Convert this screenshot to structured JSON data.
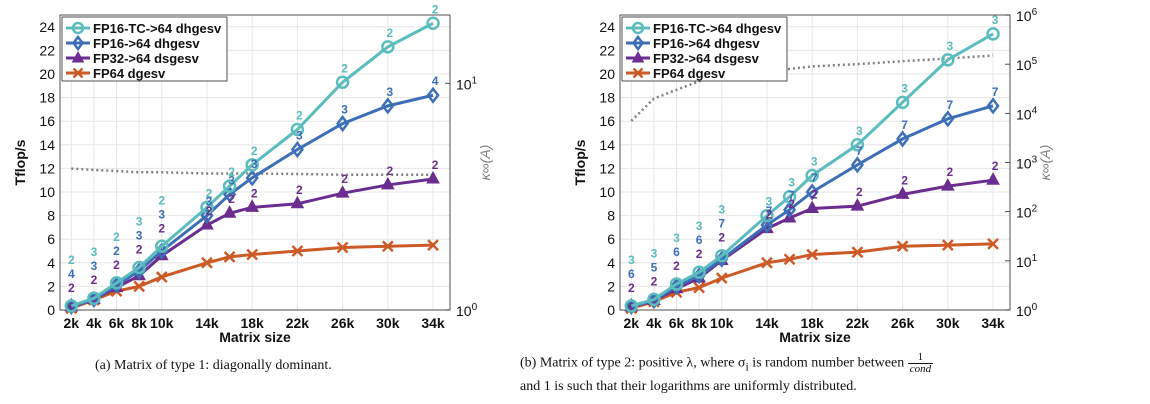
{
  "colors": {
    "fp16tc": "#5bbcbd",
    "fp16": "#3d6fb7",
    "fp32": "#6b2d8f",
    "fp64": "#cc5a26",
    "kappa": "#808080",
    "grid": "#e6e6e6"
  },
  "chart_data": [
    {
      "type": "line",
      "xlabel": "Matrix size",
      "ylabel": "Tflop/s",
      "y2label": "κ∞(A)",
      "x_ticks": [
        "2k",
        "4k",
        "6k",
        "8k",
        "10k",
        "14k",
        "18k",
        "22k",
        "26k",
        "30k",
        "34k"
      ],
      "ylim": [
        0,
        25
      ],
      "y_ticks": [
        0,
        2,
        4,
        6,
        8,
        10,
        12,
        14,
        16,
        18,
        20,
        22,
        24
      ],
      "y2_scale": "log",
      "y2lim": [
        1,
        20
      ],
      "y2_ticks": [
        "10^0",
        "10^1"
      ],
      "grid": true,
      "legend_position": "top-left",
      "x": [
        2,
        4,
        6,
        8,
        10,
        14,
        16,
        18,
        22,
        26,
        30,
        34
      ],
      "series": [
        {
          "name": "FP16-TC->64 dhgesv",
          "color_key": "fp16tc",
          "marker": "circle",
          "values": [
            0.35,
            1.0,
            2.3,
            3.6,
            5.4,
            8.7,
            10.5,
            12.3,
            15.3,
            19.3,
            22.3,
            24.3
          ],
          "labels": [
            "2",
            "3",
            "2",
            "3",
            "2",
            "2",
            "2",
            "2",
            "2",
            "2",
            "2",
            "2"
          ]
        },
        {
          "name": "FP16->64 dhgesv",
          "color_key": "fp16",
          "marker": "diamond",
          "values": [
            0.3,
            0.9,
            2.1,
            3.3,
            5.0,
            8.0,
            9.8,
            11.2,
            13.6,
            15.8,
            17.3,
            18.2
          ],
          "labels": [
            "4",
            "3",
            "2",
            "3",
            "3",
            "3",
            "3",
            "3",
            "3",
            "3",
            "3",
            "4"
          ]
        },
        {
          "name": "FP32->64 dsgesv",
          "color_key": "fp32",
          "marker": "triangle",
          "values": [
            0.25,
            0.9,
            1.9,
            2.9,
            4.6,
            7.2,
            8.2,
            8.7,
            9.0,
            9.9,
            10.6,
            11.1
          ],
          "labels": [
            "2",
            "2",
            "2",
            "2",
            "2",
            "2",
            "2",
            "2",
            "2",
            "2",
            "2",
            "2"
          ]
        },
        {
          "name": "FP64 dgesv",
          "color_key": "fp64",
          "marker": "x",
          "values": [
            0.15,
            0.85,
            1.6,
            2.0,
            2.8,
            4.0,
            4.5,
            4.7,
            5.0,
            5.3,
            5.4,
            5.5
          ],
          "labels": []
        }
      ],
      "kappa": {
        "x": [
          2,
          4,
          6,
          8,
          10,
          14,
          16,
          18,
          22,
          26,
          30,
          34
        ],
        "values": [
          4.2,
          4.15,
          4.1,
          4.05,
          4.05,
          4.0,
          4.0,
          4.0,
          3.98,
          3.95,
          3.95,
          3.95
        ]
      }
    },
    {
      "type": "line",
      "xlabel": "Matrix size",
      "ylabel": "Tflop/s",
      "y2label": "κ∞(A)",
      "x_ticks": [
        "2k",
        "4k",
        "6k",
        "8k",
        "10k",
        "14k",
        "18k",
        "22k",
        "26k",
        "30k",
        "34k"
      ],
      "ylim": [
        0,
        25
      ],
      "y_ticks": [
        0,
        2,
        4,
        6,
        8,
        10,
        12,
        14,
        16,
        18,
        20,
        22,
        24
      ],
      "y2_scale": "log",
      "y2lim": [
        1,
        1000000
      ],
      "y2_ticks": [
        "10^0",
        "10^1",
        "10^2",
        "10^3",
        "10^4",
        "10^5",
        "10^6"
      ],
      "grid": true,
      "legend_position": "top-left",
      "x": [
        2,
        4,
        6,
        8,
        10,
        14,
        16,
        18,
        22,
        26,
        30,
        34
      ],
      "series": [
        {
          "name": "FP16-TC->64 dhgesv",
          "color_key": "fp16tc",
          "marker": "circle",
          "values": [
            0.35,
            0.9,
            2.2,
            3.2,
            4.6,
            8.0,
            9.6,
            11.4,
            14.0,
            17.6,
            21.2,
            23.4
          ],
          "labels": [
            "3",
            "3",
            "3",
            "3",
            "3",
            "3",
            "3",
            "3",
            "3",
            "3",
            "3",
            "3"
          ]
        },
        {
          "name": "FP16->64 dhgesv",
          "color_key": "fp16",
          "marker": "diamond",
          "values": [
            0.3,
            0.8,
            2.0,
            2.9,
            4.3,
            7.2,
            8.5,
            10.0,
            12.3,
            14.5,
            16.2,
            17.3
          ],
          "labels": [
            "6",
            "5",
            "6",
            "6",
            "7",
            "7",
            "7",
            "7",
            "7",
            "7",
            "7",
            "7"
          ]
        },
        {
          "name": "FP32->64 dsgesv",
          "color_key": "fp32",
          "marker": "triangle",
          "values": [
            0.25,
            0.8,
            1.8,
            2.7,
            4.2,
            6.9,
            7.8,
            8.6,
            8.8,
            9.8,
            10.5,
            11.0
          ],
          "labels": [
            "2",
            "2",
            "2",
            "2",
            "2",
            "2",
            "2",
            "2",
            "2",
            "2",
            "2",
            "2"
          ]
        },
        {
          "name": "FP64 dgesv",
          "color_key": "fp64",
          "marker": "x",
          "values": [
            0.15,
            0.7,
            1.5,
            1.9,
            2.7,
            4.0,
            4.3,
            4.7,
            4.9,
            5.4,
            5.5,
            5.6
          ],
          "labels": []
        }
      ],
      "kappa": {
        "x": [
          2,
          4,
          6,
          8,
          10,
          14,
          16,
          18,
          22,
          26,
          30,
          34
        ],
        "values": [
          7000,
          20000,
          30000,
          45000,
          55000,
          70000,
          80000,
          90000,
          100000,
          115000,
          130000,
          150000
        ]
      }
    }
  ],
  "captions": {
    "a": "(a) Matrix of type 1: diagonally dominant.",
    "b_part1": "(b) Matrix of type 2: positive λ, where σ",
    "b_sub": "i",
    "b_part2": " is random number between ",
    "b_frac_num": "1",
    "b_frac_den": "cond",
    "b_line2": "and 1 is such that their logarithms are uniformly distributed."
  }
}
